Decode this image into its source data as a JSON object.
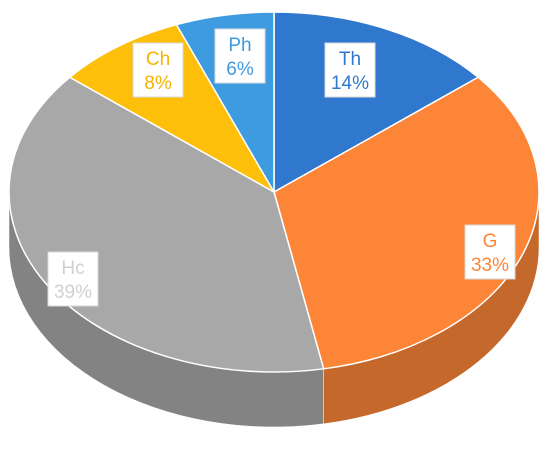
{
  "chart_data": {
    "type": "pie",
    "style": "3d",
    "categories": [
      "Th",
      "G",
      "Hc",
      "Ch",
      "Ph"
    ],
    "values": [
      14,
      33,
      39,
      8,
      6
    ],
    "percent_labels": [
      "14%",
      "33%",
      "39%",
      "8%",
      "6%"
    ],
    "colors": [
      "#2f78cd",
      "#fd8537",
      "#a8a8a8",
      "#fdbf09",
      "#3f9be0"
    ],
    "label_colors": [
      "#2f78cd",
      "#fd8537",
      "#d0d0d0",
      "#f4b400",
      "#3f9be0"
    ],
    "start_angle": "12 o'clock",
    "direction": "clockwise",
    "title": "",
    "legend": "none"
  }
}
